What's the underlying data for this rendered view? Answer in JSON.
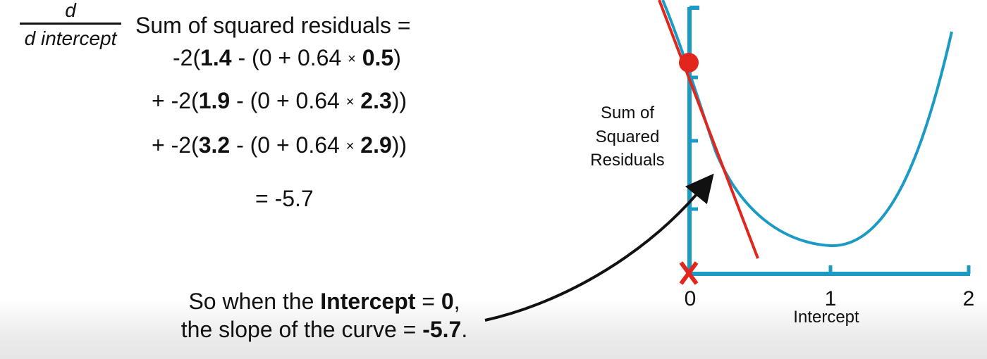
{
  "derivative": {
    "numerator": "d",
    "denominator": "d intercept"
  },
  "equation": {
    "lead": "Sum of squared residuals =",
    "terms": [
      {
        "prefix": "-2(",
        "observed": "1.4",
        "middle": " - (0 + 0.64 ",
        "times": "×",
        "weight": "0.5",
        "close": ")"
      },
      {
        "prefix": "+ -2(",
        "observed": "1.9",
        "middle": " - (0 + 0.64 ",
        "times": "×",
        "weight": "2.3",
        "close": "))"
      },
      {
        "prefix": "+ -2(",
        "observed": "3.2",
        "middle": " - (0 + 0.64 ",
        "times": "×",
        "weight": "2.9",
        "close": "))"
      }
    ],
    "result": "= -5.7"
  },
  "caption": {
    "line1_pre": "So when the ",
    "line1_bold": "Intercept",
    "line1_mid": " = ",
    "line1_value": "0",
    "line1_post": ",",
    "line2_pre": "the slope of the curve = ",
    "line2_value": "-5.7",
    "line2_post": "."
  },
  "chart_data": {
    "type": "line",
    "xlabel": "Intercept",
    "ylabel_lines": [
      "Sum of",
      "Squared",
      "Residuals"
    ],
    "x_ticks": [
      "0",
      "1",
      "2"
    ],
    "x_range": [
      0,
      2
    ],
    "series": [
      {
        "kind": "curve",
        "color": "#1b9bc4"
      },
      {
        "kind": "tangent",
        "color": "#e2261d",
        "at_x": 0,
        "slope": -5.7
      }
    ],
    "point_marker": {
      "x": 0,
      "color": "#e2261d"
    },
    "x_marker": {
      "x": 0,
      "symbol": "X",
      "color": "#e2261d"
    },
    "axis_color": "#1b9bc4"
  }
}
